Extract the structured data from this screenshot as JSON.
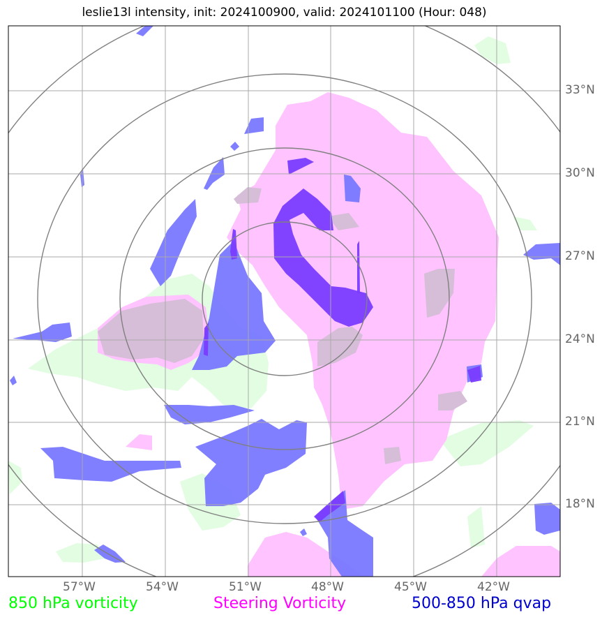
{
  "title": "leslie13l intensity, init: 2024100900, valid: 2024101100 (Hour: 048)",
  "lat_labels": [
    "33°N",
    "30°N",
    "27°N",
    "24°N",
    "21°N",
    "18°N"
  ],
  "lon_labels": [
    "57°W",
    "54°W",
    "51°W",
    "48°W",
    "45°W",
    "42°W"
  ],
  "legend": [
    {
      "label": "850 hPa vorticity",
      "color": "#00ff00"
    },
    {
      "label": "Steering Vorticity",
      "color": "#ff00ff"
    },
    {
      "label": "500-850 hPa qvap",
      "color": "#0000cc"
    }
  ],
  "layer_colors": {
    "vorticity_850": "#e2fde2",
    "steering_vorticity": "#ffc3ff",
    "qvap_500_850": "#7878ff",
    "qvap_core": "#7a3cff",
    "overlap": "#d6bdd8"
  },
  "range_ring_color": "#808080",
  "grid_color": "#aaaaaa"
}
